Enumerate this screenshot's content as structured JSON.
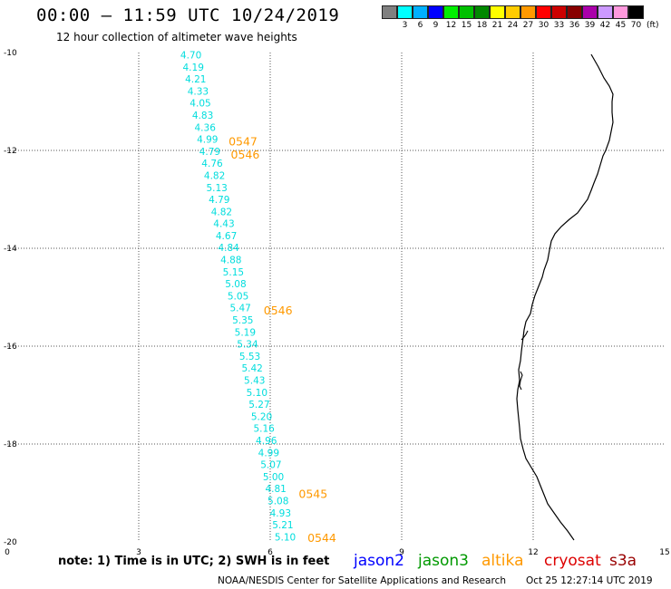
{
  "title": "00:00 – 11:59 UTC 10/24/2019",
  "subtitle": "12 hour collection of altimeter wave heights",
  "legend": {
    "colors": [
      "#808080",
      "#00ffff",
      "#00b0ff",
      "#0000ff",
      "#00ee00",
      "#00c000",
      "#008800",
      "#ffff00",
      "#ffcc00",
      "#ff9900",
      "#ff0000",
      "#cc0000",
      "#880000",
      "#aa00aa",
      "#cc99ff",
      "#ff99dd",
      "#000000"
    ],
    "labels": [
      "",
      "3",
      "6",
      "9",
      "12",
      "15",
      "18",
      "21",
      "24",
      "27",
      "30",
      "33",
      "36",
      "39",
      "42",
      "45",
      "70"
    ],
    "unit": "(ft)"
  },
  "axes": {
    "x_ticks": [
      "0",
      "3",
      "6",
      "9",
      "12",
      "15"
    ],
    "y_ticks": [
      "-10",
      "-12",
      "-14",
      "-16",
      "-18",
      "-20"
    ]
  },
  "chart_data": {
    "type": "scatter",
    "units": "feet",
    "xlim": [
      0,
      15
    ],
    "ylim": [
      -20,
      -10
    ],
    "swh_values": [
      "4.70",
      "4.19",
      "4.21",
      "4.33",
      "4.05",
      "4.83",
      "4.36",
      "4.99",
      "4.79",
      "4.76",
      "4.82",
      "5.13",
      "4.79",
      "4.82",
      "4.43",
      "4.67",
      "4.84",
      "4.88",
      "5.15",
      "5.08",
      "5.05",
      "5.47",
      "5.35",
      "5.19",
      "5.34",
      "5.53",
      "5.42",
      "5.43",
      "5.10",
      "5.27",
      "5.20",
      "5.16",
      "4.96",
      "4.99",
      "5.07",
      "5.00",
      "4.81",
      "5.08",
      "4.93",
      "5.21",
      "5.10"
    ],
    "times": [
      {
        "label": "0547",
        "lon": 5.05,
        "lat": -11.9
      },
      {
        "label": "0546",
        "lon": 5.1,
        "lat": -12.17
      },
      {
        "label": "0546",
        "lon": 5.85,
        "lat": -15.35
      },
      {
        "label": "0545",
        "lon": 6.65,
        "lat": -19.1
      },
      {
        "label": "0544",
        "lon": 6.85,
        "lat": -20.0
      }
    ]
  },
  "note": "note: 1) Time is in UTC; 2) SWH is in feet",
  "satellites": [
    {
      "name": "jason2",
      "color": "#0000ff"
    },
    {
      "name": "jason3",
      "color": "#009900"
    },
    {
      "name": "altika",
      "color": "#ff9900"
    },
    {
      "name": "cryosat",
      "color": "#dd0000"
    },
    {
      "name": "s3a",
      "color": "#990000"
    }
  ],
  "credit": "NOAA/NESDIS Center for Satellite Applications and Research",
  "timestamp": "Oct 25 12:27:14 UTC 2019"
}
